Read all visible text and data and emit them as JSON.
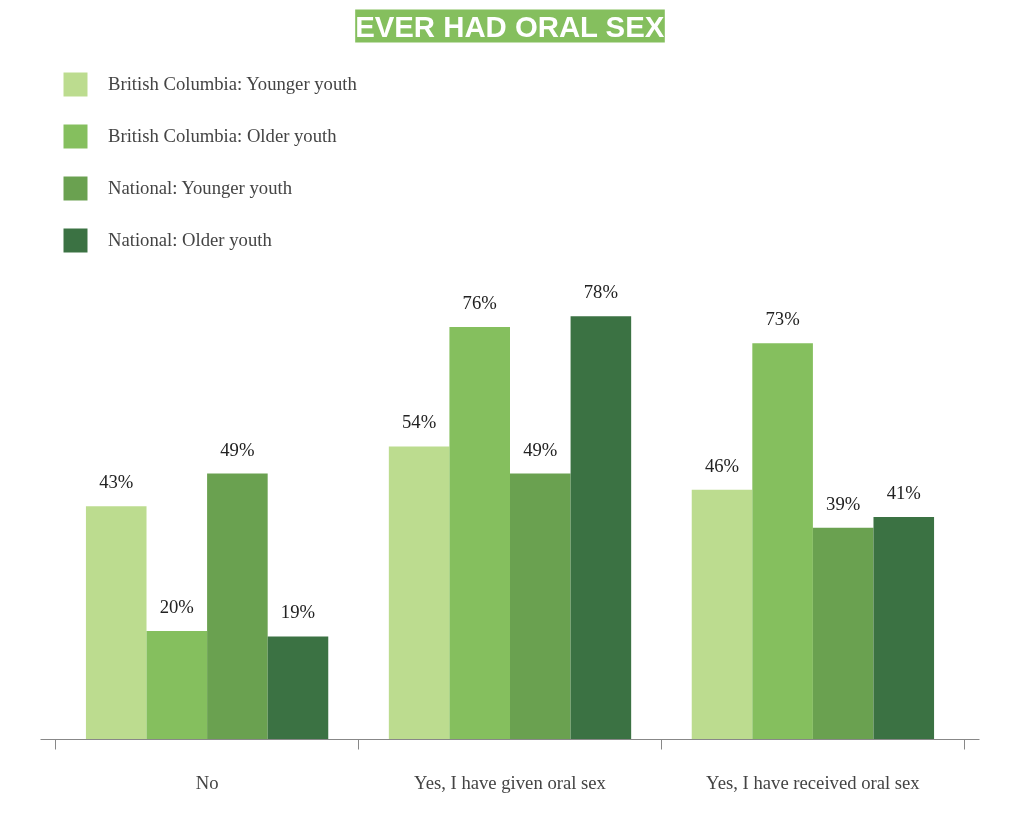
{
  "chart_data": {
    "type": "bar",
    "title": "EVER HAD ORAL SEX",
    "categories": [
      "No",
      "Yes, I have given oral sex",
      "Yes, I have received oral sex"
    ],
    "series": [
      {
        "name": "British Columbia: Younger youth",
        "color": "#bcdc8f",
        "values": [
          43,
          54,
          46
        ],
        "value_labels": [
          "43%",
          "54%",
          "46%"
        ]
      },
      {
        "name": "British Columbia: Older youth",
        "color": "#85bf5e",
        "values": [
          20,
          76,
          73
        ],
        "value_labels": [
          "20%",
          "76%",
          "73%"
        ]
      },
      {
        "name": "National: Younger youth",
        "color": "#6aa150",
        "values": [
          49,
          49,
          39
        ],
        "value_labels": [
          "49%",
          "49%",
          "39%"
        ]
      },
      {
        "name": "National: Older youth",
        "color": "#3b7243",
        "values": [
          19,
          78,
          41
        ],
        "value_labels": [
          "19%",
          "78%",
          "41%"
        ]
      }
    ],
    "legend": "top left",
    "grid": false
  }
}
